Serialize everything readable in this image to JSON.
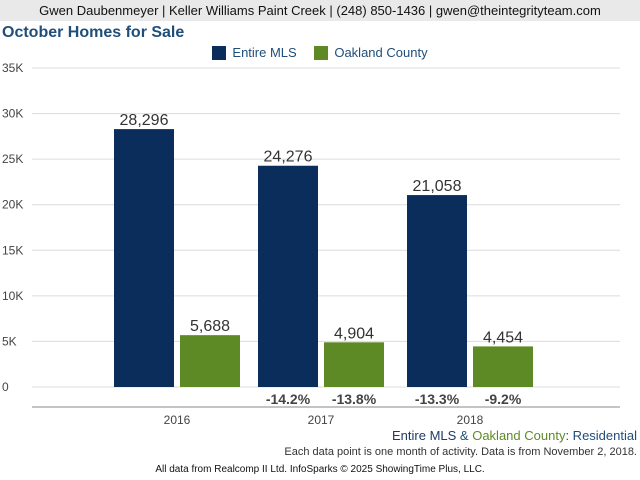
{
  "header": {
    "contact_line": "Gwen Daubenmeyer | Keller Williams Paint Creek | (248) 850-1436 | gwen@theintegrityteam.com"
  },
  "colors": {
    "entire_mls": "#0b2d5c",
    "oakland_county": "#5e8a26",
    "title": "#1f4e79"
  },
  "subtitle": {
    "series1": "Entire MLS",
    "connector": " & ",
    "series2": "Oakland County",
    "suffix": ": Residential"
  },
  "note": "Each data point is one month of activity. Data is from November 2, 2018.",
  "footer": "All data from Realcomp II Ltd. InfoSparks © 2025 ShowingTime Plus, LLC.",
  "chart_data": {
    "type": "bar",
    "title": "October Homes for Sale",
    "categories": [
      "2016",
      "2017",
      "2018"
    ],
    "ylim": [
      0,
      35000
    ],
    "yticks": [
      0,
      5000,
      10000,
      15000,
      20000,
      25000,
      30000,
      35000
    ],
    "ytick_labels": [
      "0",
      "5K",
      "10K",
      "15K",
      "20K",
      "25K",
      "30K",
      "35K"
    ],
    "grid": true,
    "legend_position": "top-center",
    "series": [
      {
        "name": "Entire MLS",
        "values": [
          28296,
          24276,
          21058
        ],
        "value_labels": [
          "28,296",
          "24,276",
          "21,058"
        ],
        "change_labels": [
          "",
          "-14.2%",
          "-13.3%"
        ]
      },
      {
        "name": "Oakland County",
        "values": [
          5688,
          4904,
          4454
        ],
        "value_labels": [
          "5,688",
          "4,904",
          "4,454"
        ],
        "change_labels": [
          "",
          "-13.8%",
          "-9.2%"
        ]
      }
    ]
  }
}
